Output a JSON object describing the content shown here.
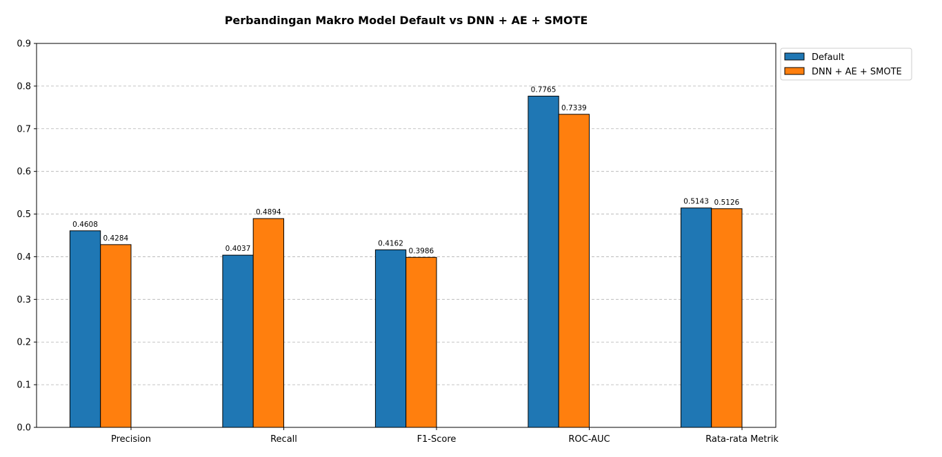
{
  "chart_data": {
    "type": "bar",
    "title": "Perbandingan Makro Model Default vs DNN + AE + SMOTE",
    "xlabel": "",
    "ylabel": "",
    "categories": [
      "Precision",
      "Recall",
      "F1-Score",
      "ROC-AUC",
      "Rata-rata Metrik"
    ],
    "series": [
      {
        "name": "Default",
        "values": [
          0.4608,
          0.4037,
          0.4162,
          0.7765,
          0.5143
        ],
        "labels": [
          "0.4608",
          "0.4037",
          "0.4162",
          "0.7765",
          "0.5143"
        ],
        "color": "#1f77b4"
      },
      {
        "name": "DNN + AE + SMOTE",
        "values": [
          0.4284,
          0.4894,
          0.3986,
          0.7339,
          0.5126
        ],
        "labels": [
          "0.4284",
          "0.4894",
          "0.3986",
          "0.7339",
          "0.5126"
        ],
        "color": "#ff7f0e"
      }
    ],
    "ylim": [
      0,
      0.9
    ],
    "yticks": [
      "0.0",
      "0.1",
      "0.2",
      "0.3",
      "0.4",
      "0.5",
      "0.6",
      "0.7",
      "0.8",
      "0.9"
    ],
    "grid": "y-dashed",
    "legend": "outside-top-right"
  }
}
